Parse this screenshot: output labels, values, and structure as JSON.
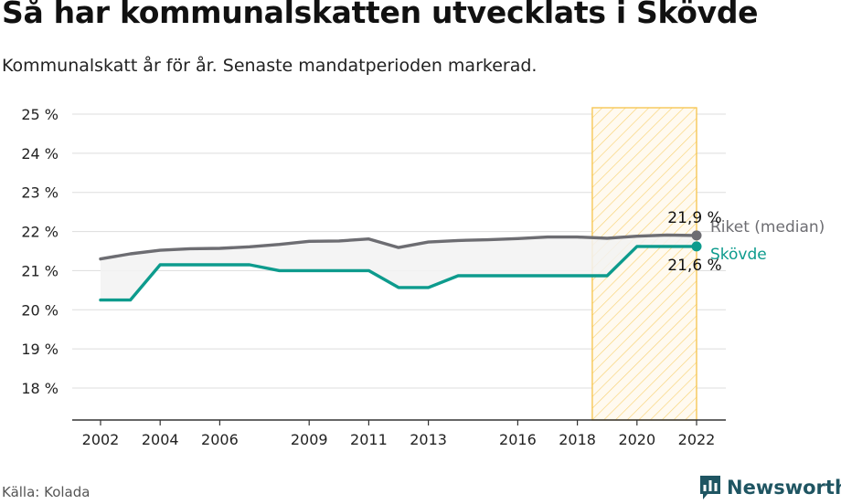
{
  "title": "Så har kommunalskatten utvecklats i Skövde",
  "subtitle": "Kommunalskatt år för år. Senaste mandatperioden markerad.",
  "source": "Källa: Kolada",
  "brand": "Newsworthy",
  "colors": {
    "riket": "#6d6d72",
    "skovde": "#0d9b8d",
    "highlight": "#f6c44a",
    "band": "#f2f2f2"
  },
  "icons": {
    "brand": "newsworthy-logo-icon"
  },
  "chart_data": {
    "type": "line",
    "x_ticks": [
      2002,
      2004,
      2006,
      2009,
      2011,
      2013,
      2016,
      2018,
      2020,
      2022
    ],
    "y_ticks": [
      18,
      19,
      20,
      21,
      22,
      23,
      24,
      25
    ],
    "y_tick_labels": [
      "18 %",
      "19 %",
      "20 %",
      "21 %",
      "22 %",
      "23 %",
      "24 %",
      "25 %"
    ],
    "ylim": [
      17.2,
      25.2
    ],
    "xlim": [
      2001,
      2023
    ],
    "highlight_period": [
      2018.5,
      2022
    ],
    "grid": true,
    "series": [
      {
        "name": "Riket (median)",
        "color": "#6d6d72",
        "end_label": "21,9 %",
        "x": [
          2002,
          2003,
          2004,
          2005,
          2006,
          2007,
          2008,
          2009,
          2010,
          2011,
          2012,
          2013,
          2014,
          2015,
          2016,
          2017,
          2018,
          2019,
          2020,
          2021,
          2022
        ],
        "values": [
          21.3,
          21.43,
          21.52,
          21.56,
          21.57,
          21.61,
          21.67,
          21.75,
          21.76,
          21.81,
          21.59,
          21.73,
          21.77,
          21.79,
          21.82,
          21.86,
          21.86,
          21.83,
          21.88,
          21.91,
          21.9
        ]
      },
      {
        "name": "Skövde",
        "color": "#0d9b8d",
        "end_label": "21,6 %",
        "x": [
          2002,
          2003,
          2004,
          2005,
          2006,
          2007,
          2008,
          2009,
          2010,
          2011,
          2012,
          2013,
          2014,
          2015,
          2016,
          2017,
          2018,
          2019,
          2020,
          2021,
          2022
        ],
        "values": [
          20.25,
          20.25,
          21.15,
          21.15,
          21.15,
          21.15,
          21.0,
          21.0,
          21.0,
          21.0,
          20.57,
          20.57,
          20.87,
          20.87,
          20.87,
          20.87,
          20.87,
          20.87,
          21.62,
          21.62,
          21.62
        ]
      }
    ]
  }
}
